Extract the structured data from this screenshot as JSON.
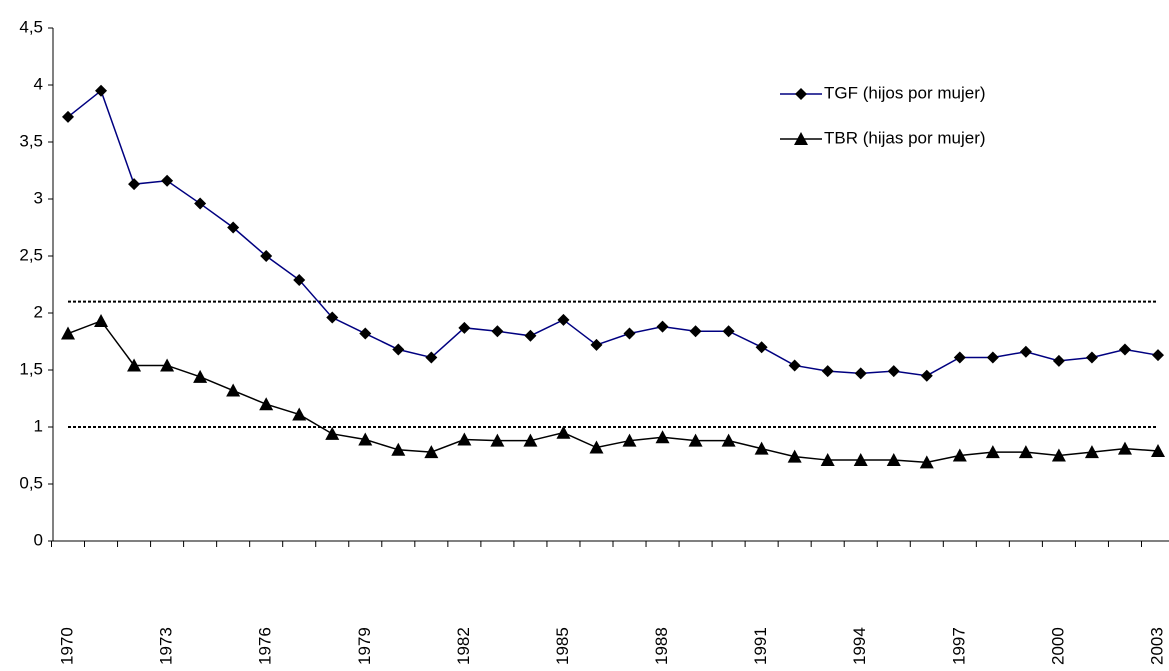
{
  "chart_data": {
    "type": "line",
    "categories": [
      "1970",
      null,
      null,
      "1973",
      null,
      null,
      "1976",
      null,
      null,
      "1979",
      null,
      null,
      "1982",
      null,
      null,
      "1985",
      null,
      null,
      "1988",
      null,
      null,
      "1991",
      null,
      null,
      "1994",
      null,
      null,
      "1997",
      null,
      null,
      "2000",
      null,
      null,
      "2003"
    ],
    "series": [
      {
        "name": "TGF (hijos por mujer)",
        "color": "#000080",
        "marker": "diamond",
        "values": [
          3.72,
          3.95,
          3.13,
          3.16,
          2.96,
          2.75,
          2.5,
          2.29,
          1.96,
          1.82,
          1.68,
          1.61,
          1.87,
          1.84,
          1.8,
          1.94,
          1.72,
          1.82,
          1.88,
          1.84,
          1.84,
          1.7,
          1.54,
          1.49,
          1.47,
          1.49,
          1.45,
          1.61,
          1.61,
          1.66,
          1.58,
          1.61,
          1.68,
          1.63
        ]
      },
      {
        "name": "TBR (hijas por mujer)",
        "color": "#000000",
        "marker": "triangle",
        "values": [
          1.82,
          1.93,
          1.54,
          1.54,
          1.44,
          1.32,
          1.2,
          1.11,
          0.94,
          0.89,
          0.8,
          0.78,
          0.89,
          0.88,
          0.88,
          0.95,
          0.82,
          0.88,
          0.91,
          0.88,
          0.88,
          0.81,
          0.74,
          0.71,
          0.71,
          0.71,
          0.69,
          0.75,
          0.78,
          0.78,
          0.75,
          0.78,
          0.81,
          0.79
        ]
      }
    ],
    "reference_lines": [
      2.1,
      1
    ],
    "ylim": [
      0,
      4.5
    ],
    "yticks": [
      0,
      {
        "value": 0.5,
        "label": "0,5"
      },
      1,
      {
        "value": 1.5,
        "label": "1,5"
      },
      2,
      {
        "value": 2.5,
        "label": "2,5"
      },
      3,
      {
        "value": 3.5,
        "label": "3,5"
      },
      4,
      {
        "value": 4.5,
        "label": "4,5"
      }
    ],
    "grid": false,
    "legend": "top-right"
  }
}
